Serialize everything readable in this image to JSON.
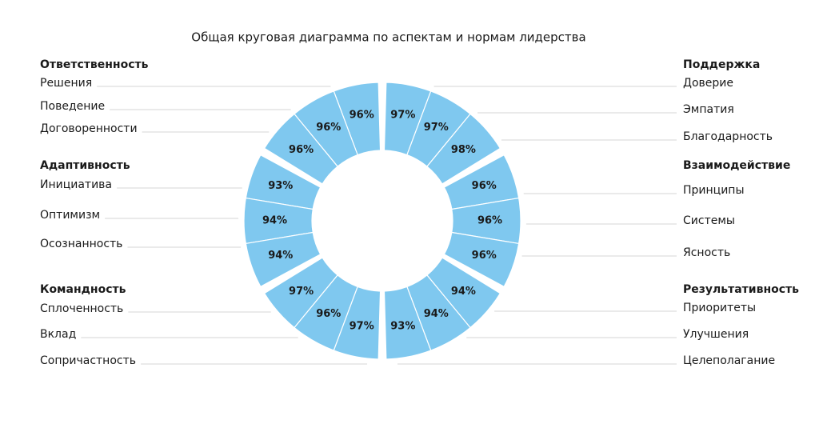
{
  "chart_data": {
    "type": "donut",
    "title": "Общая круговая диаграмма по аспектам и нормам лидерства",
    "color": "#7fc8ef",
    "groups": [
      {
        "name": "Поддержка",
        "categories": [
          "Доверие",
          "Эмпатия",
          "Благодарность"
        ],
        "values": [
          97,
          97,
          98
        ],
        "value_labels": [
          "97%",
          "97%",
          "98%"
        ]
      },
      {
        "name": "Взаимодействие",
        "categories": [
          "Принципы",
          "Системы",
          "Ясность"
        ],
        "values": [
          96,
          96,
          96
        ],
        "value_labels": [
          "96%",
          "96%",
          "96%"
        ]
      },
      {
        "name": "Результативность",
        "categories": [
          "Приоритеты",
          "Улучшения",
          "Целеполагание"
        ],
        "values": [
          94,
          94,
          93
        ],
        "value_labels": [
          "94%",
          "94%",
          "93%"
        ]
      },
      {
        "name": "Командность",
        "categories": [
          "Сплоченность",
          "Вклад",
          "Сопричастность"
        ],
        "values": [
          97,
          96,
          97
        ],
        "value_labels": [
          "97%",
          "96%",
          "97%"
        ]
      },
      {
        "name": "Адаптивность",
        "categories": [
          "Инициатива",
          "Оптимизм",
          "Осознанность"
        ],
        "values": [
          93,
          94,
          94
        ],
        "value_labels": [
          "93%",
          "94%",
          "94%"
        ]
      },
      {
        "name": "Ответственность",
        "categories": [
          "Решения",
          "Поведение",
          "Договоренности"
        ],
        "values": [
          96,
          96,
          96
        ],
        "value_labels": [
          "96%",
          "96%",
          "96%"
        ]
      }
    ]
  }
}
